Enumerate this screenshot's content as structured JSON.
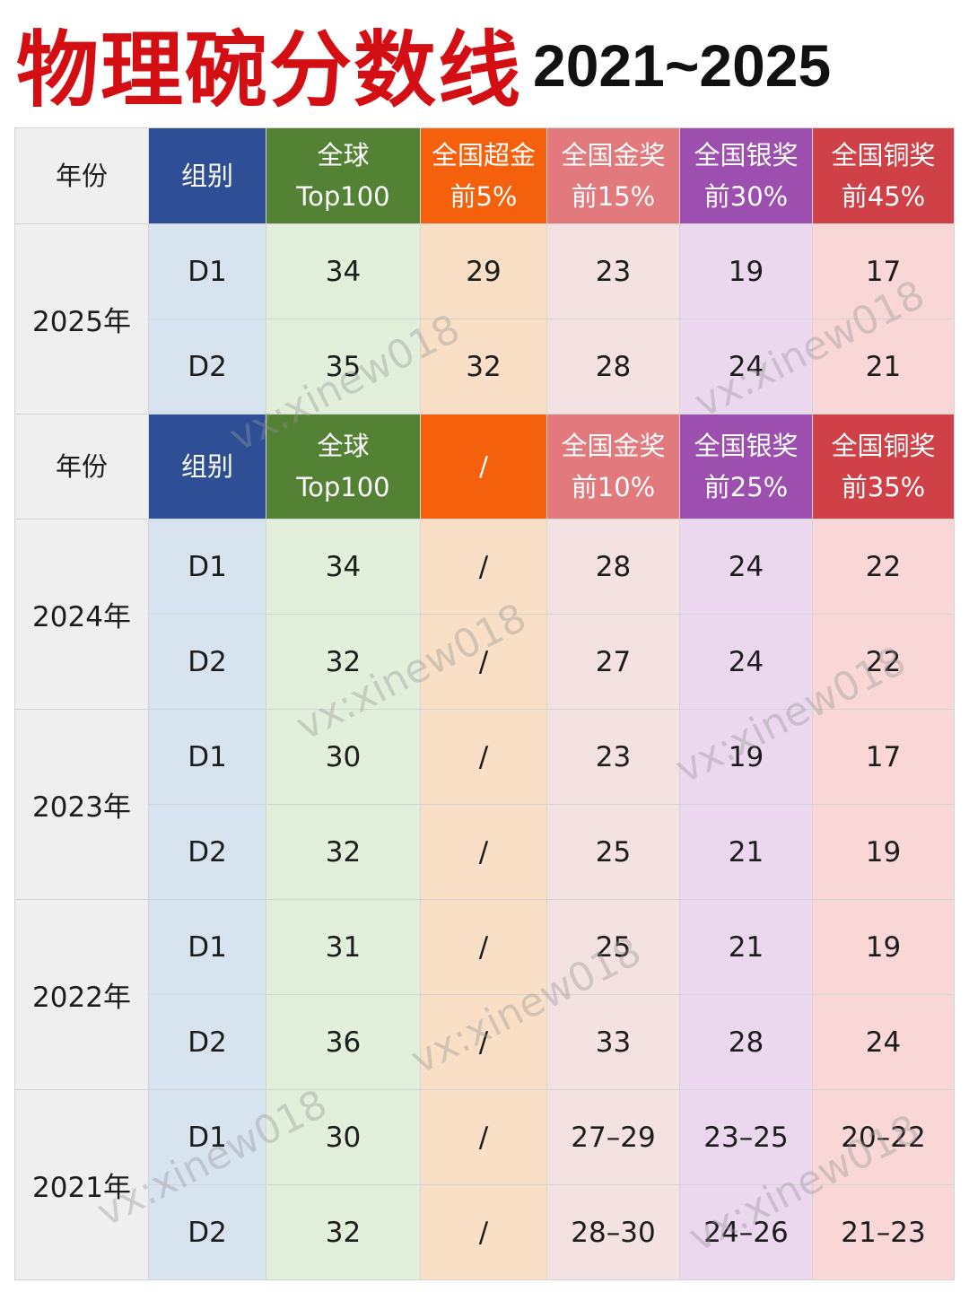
{
  "title": {
    "main": "物理碗分数线",
    "years": "2021~2025"
  },
  "header_2025": {
    "year": "年份",
    "group": "组别",
    "top": [
      "全球",
      "Top100"
    ],
    "super": [
      "全国超金",
      "前5%"
    ],
    "gold": [
      "全国金奖",
      "前15%"
    ],
    "silver": [
      "全国银奖",
      "前30%"
    ],
    "bronze": [
      "全国铜奖",
      "前45%"
    ]
  },
  "header_old": {
    "year": "年份",
    "group": "组别",
    "top": [
      "全球",
      "Top100"
    ],
    "super": "/",
    "gold": [
      "全国金奖",
      "前10%"
    ],
    "silver": [
      "全国银奖",
      "前25%"
    ],
    "bronze": [
      "全国铜奖",
      "前35%"
    ]
  },
  "rows": [
    {
      "year": "2025年",
      "groups": [
        {
          "group": "D1",
          "top": "34",
          "super": "29",
          "gold": "23",
          "silver": "19",
          "bronze": "17"
        },
        {
          "group": "D2",
          "top": "35",
          "super": "32",
          "gold": "28",
          "silver": "24",
          "bronze": "21"
        }
      ]
    },
    {
      "year": "2024年",
      "groups": [
        {
          "group": "D1",
          "top": "34",
          "super": "/",
          "gold": "28",
          "silver": "24",
          "bronze": "22"
        },
        {
          "group": "D2",
          "top": "32",
          "super": "/",
          "gold": "27",
          "silver": "24",
          "bronze": "22"
        }
      ]
    },
    {
      "year": "2023年",
      "groups": [
        {
          "group": "D1",
          "top": "30",
          "super": "/",
          "gold": "23",
          "silver": "19",
          "bronze": "17"
        },
        {
          "group": "D2",
          "top": "32",
          "super": "/",
          "gold": "25",
          "silver": "21",
          "bronze": "19"
        }
      ]
    },
    {
      "year": "2022年",
      "groups": [
        {
          "group": "D1",
          "top": "31",
          "super": "/",
          "gold": "25",
          "silver": "21",
          "bronze": "19"
        },
        {
          "group": "D2",
          "top": "36",
          "super": "/",
          "gold": "33",
          "silver": "28",
          "bronze": "24"
        }
      ]
    },
    {
      "year": "2021年",
      "groups": [
        {
          "group": "D1",
          "top": "30",
          "super": "/",
          "gold": "27–29",
          "silver": "23–25",
          "bronze": "20–22"
        },
        {
          "group": "D2",
          "top": "32",
          "super": "/",
          "gold": "28–30",
          "silver": "24–26",
          "bronze": "21–23"
        }
      ]
    }
  ],
  "watermark": "vx:xinew018"
}
